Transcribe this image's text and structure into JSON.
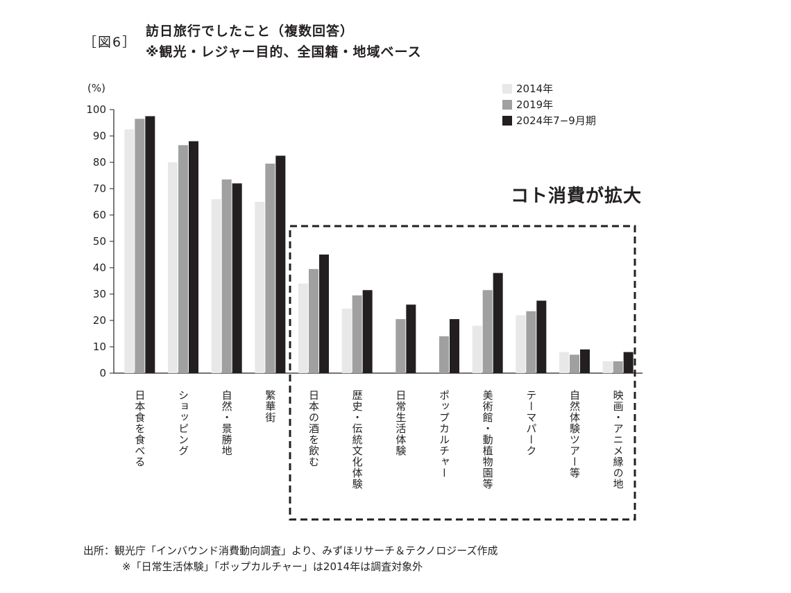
{
  "figure_label": "［図6］",
  "title_line1": "訪日旅行でしたこと（複数回答）",
  "title_line2": "※観光・レジャー目的、全国籍・地域ベース",
  "annotation": "コト消費が拡大",
  "source": "出所：観光庁「インバウンド消費動向調査」より、みずほリサーチ＆テクノロジーズ作成",
  "note": "※「日常生活体験」「ポップカルチャー」は2014年は調査対象外",
  "colors": {
    "2014": "#e8e8e8",
    "2019": "#a0a0a0",
    "2024": "#231f20",
    "text": "#231f20"
  },
  "chart_data": {
    "type": "bar",
    "ylabel": "(%)",
    "ylim": [
      0,
      100
    ],
    "yticks": [
      0,
      10,
      20,
      30,
      40,
      50,
      60,
      70,
      80,
      90,
      100
    ],
    "grid": false,
    "legend_position": "top-right",
    "categories": [
      "日本食を食べる",
      "ショッピング",
      "自然・景勝地",
      "繁華街",
      "日本の酒を飲む",
      "歴史・伝統文化体験",
      "日常生活体験",
      "ポップカルチャー",
      "美術館・動植物園等",
      "テーマパーク",
      "自然体験ツアー等",
      "映画・アニメ縁の地"
    ],
    "series": [
      {
        "name": "2014年",
        "values": [
          92.5,
          80,
          66,
          65,
          34,
          24.5,
          null,
          null,
          18,
          22,
          8,
          4.5
        ]
      },
      {
        "name": "2019年",
        "values": [
          96.5,
          86.5,
          73.5,
          79.5,
          39.5,
          29.5,
          20.5,
          14,
          31.5,
          23.5,
          7,
          4.5
        ]
      },
      {
        "name": "2024年7−9月期",
        "values": [
          97.5,
          88,
          72,
          82.5,
          45,
          31.5,
          26,
          20.5,
          38,
          27.5,
          9,
          8
        ]
      }
    ]
  }
}
